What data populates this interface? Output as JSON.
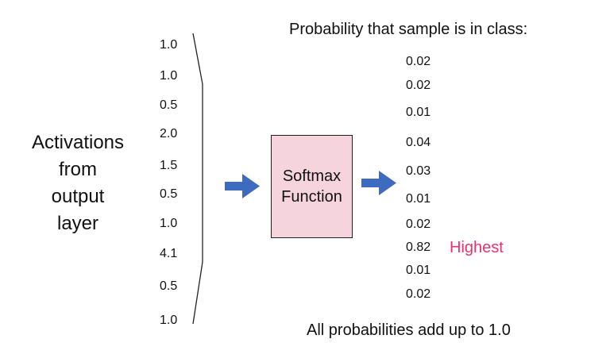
{
  "activations_label": [
    "Activations",
    "from",
    "output",
    "layer"
  ],
  "activations": [
    "1.0",
    "1.0",
    "0.5",
    "2.0",
    "1.5",
    "0.5",
    "1.0",
    "4.1",
    "0.5",
    "1.0"
  ],
  "function_box": {
    "line1": "Softmax",
    "line2": "Function",
    "fill": "#f6d4de"
  },
  "probability_title": "Probability that sample is in class:",
  "probabilities": [
    "0.02",
    "0.02",
    "0.01",
    "0.04",
    "0.03",
    "0.01",
    "0.02",
    "0.82",
    "0.01",
    "0.02"
  ],
  "highest_label": "Highest",
  "highest_color": "#e8336d",
  "arrow_color": "#3d6bbf",
  "footer": "All probabilities add up to 1.0"
}
